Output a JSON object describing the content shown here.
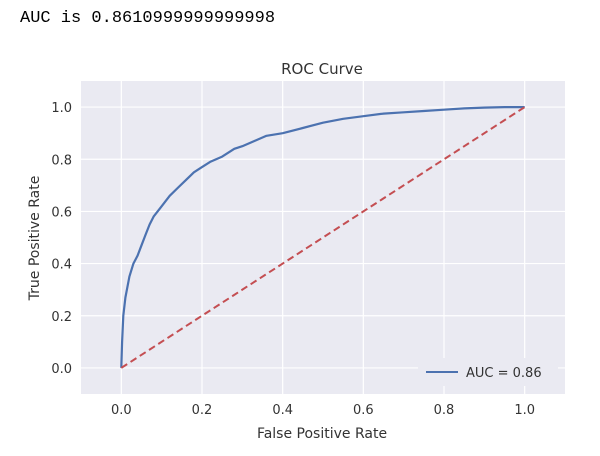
{
  "output": {
    "auc_text": "AUC is 0.8610999999999998"
  },
  "chart_data": {
    "type": "line",
    "title": "ROC Curve",
    "xlabel": "False Positive Rate",
    "ylabel": "True Positive Rate",
    "xlim": [
      -0.1,
      1.1
    ],
    "ylim": [
      -0.1,
      1.1
    ],
    "xticks": [
      "0.0",
      "0.2",
      "0.4",
      "0.6",
      "0.8",
      "1.0"
    ],
    "yticks": [
      "0.0",
      "0.2",
      "0.4",
      "0.6",
      "0.8",
      "1.0"
    ],
    "grid": true,
    "style": "seaborn-darkgrid",
    "legend_position": "lower-right",
    "series": [
      {
        "name": "AUC = 0.86",
        "color": "#4c72b0",
        "linestyle": "solid",
        "x": [
          0.0,
          0.002,
          0.005,
          0.01,
          0.015,
          0.02,
          0.03,
          0.04,
          0.05,
          0.06,
          0.07,
          0.08,
          0.1,
          0.12,
          0.14,
          0.16,
          0.18,
          0.2,
          0.22,
          0.25,
          0.28,
          0.3,
          0.33,
          0.36,
          0.4,
          0.45,
          0.5,
          0.55,
          0.6,
          0.65,
          0.7,
          0.75,
          0.8,
          0.85,
          0.9,
          0.95,
          1.0
        ],
        "y": [
          0.0,
          0.1,
          0.2,
          0.27,
          0.31,
          0.35,
          0.4,
          0.43,
          0.47,
          0.51,
          0.55,
          0.58,
          0.62,
          0.66,
          0.69,
          0.72,
          0.75,
          0.77,
          0.79,
          0.81,
          0.84,
          0.85,
          0.87,
          0.89,
          0.9,
          0.92,
          0.94,
          0.955,
          0.965,
          0.975,
          0.98,
          0.985,
          0.99,
          0.995,
          0.998,
          1.0,
          1.0
        ]
      },
      {
        "name": "",
        "color": "#c44e52",
        "linestyle": "dashed",
        "x": [
          0.0,
          1.0
        ],
        "y": [
          0.0,
          1.0
        ]
      }
    ]
  }
}
